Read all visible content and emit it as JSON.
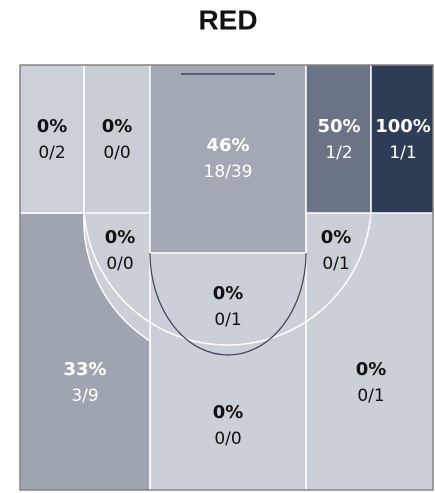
{
  "title": "RED",
  "zones": [
    {
      "pct": "0%",
      "shots": "0/2"
    },
    {
      "pct": "0%",
      "shots": "0/0"
    },
    {
      "pct": "46%",
      "shots": "18/39"
    },
    {
      "pct": "50%",
      "shots": "1/2"
    },
    {
      "pct": "100%",
      "shots": "1/1"
    },
    {
      "pct": "0%",
      "shots": "0/0"
    },
    {
      "pct": "0%",
      "shots": "0/1"
    },
    {
      "pct": "0%",
      "shots": "0/1"
    },
    {
      "pct": "33%",
      "shots": "3/9"
    },
    {
      "pct": "0%",
      "shots": "0/1"
    },
    {
      "pct": "0%",
      "shots": "0/0"
    }
  ]
}
